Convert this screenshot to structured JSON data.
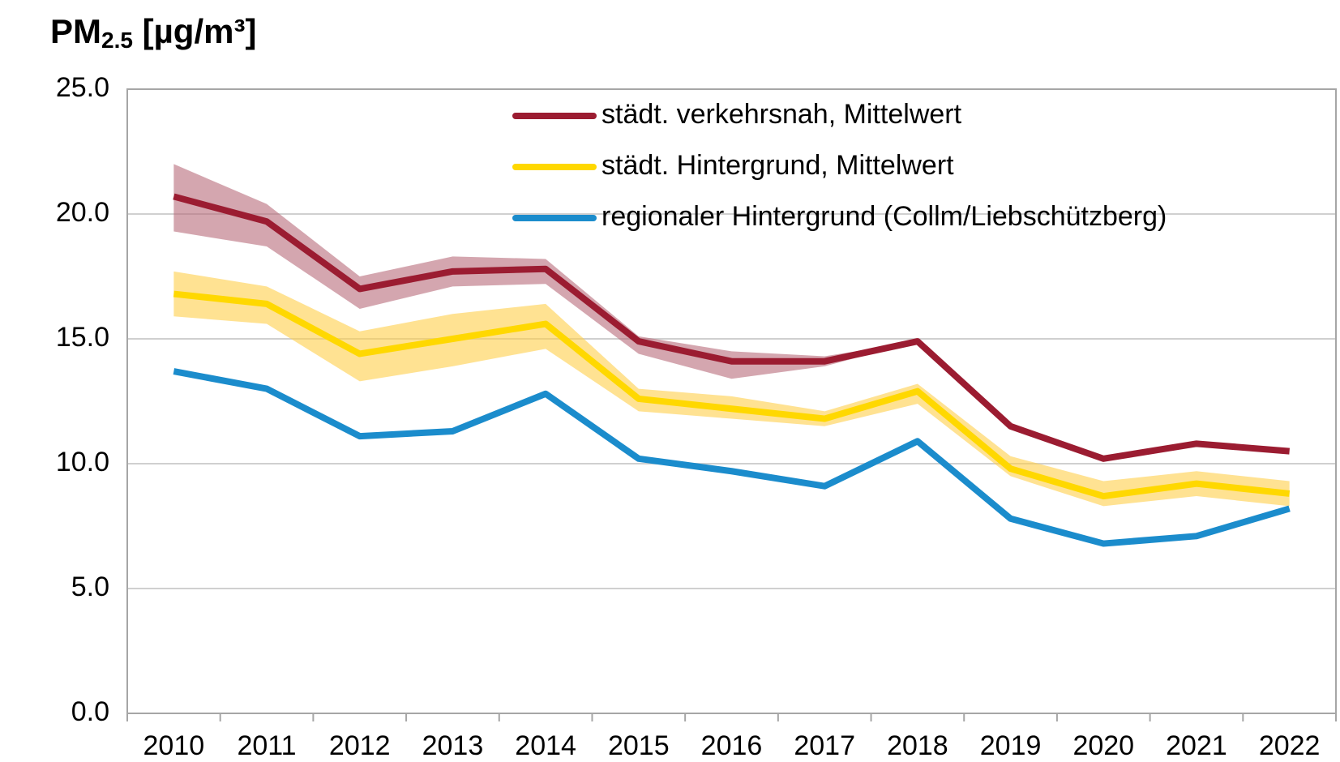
{
  "chart_data": {
    "type": "line",
    "title": {
      "main": "PM",
      "sub": "2.5",
      "unit": " [µg/m³]"
    },
    "categories": [
      "2010",
      "2011",
      "2012",
      "2013",
      "2014",
      "2015",
      "2016",
      "2017",
      "2018",
      "2019",
      "2020",
      "2021",
      "2022"
    ],
    "series": [
      {
        "name": "städt. verkehrsnah, Mittelwert",
        "color": "#9b1c31",
        "band_color": "#b86a79",
        "values": [
          20.7,
          19.7,
          17.0,
          17.7,
          17.8,
          14.9,
          14.1,
          14.1,
          14.9,
          11.5,
          10.2,
          10.8,
          10.5
        ],
        "range_lower": [
          19.3,
          18.7,
          16.2,
          17.1,
          17.2,
          14.4,
          13.4,
          13.9,
          14.9,
          11.5,
          10.2,
          10.8,
          10.5
        ],
        "range_upper": [
          22.0,
          20.4,
          17.5,
          18.3,
          18.2,
          15.1,
          14.5,
          14.3,
          14.9,
          11.5,
          10.2,
          10.8,
          10.5
        ]
      },
      {
        "name": "städt. Hintergrund, Mittelwert",
        "color": "#ffd800",
        "band_color": "#ffcf4a",
        "values": [
          16.8,
          16.4,
          14.4,
          15.0,
          15.6,
          12.6,
          12.2,
          11.8,
          12.9,
          9.8,
          8.7,
          9.2,
          8.8
        ],
        "range_lower": [
          15.9,
          15.6,
          13.3,
          13.9,
          14.6,
          12.1,
          11.8,
          11.5,
          12.4,
          9.5,
          8.3,
          8.7,
          8.3
        ],
        "range_upper": [
          17.7,
          17.1,
          15.3,
          16.0,
          16.4,
          13.0,
          12.7,
          12.1,
          13.2,
          10.3,
          9.3,
          9.7,
          9.3
        ]
      },
      {
        "name": "regionaler Hintergrund (Collm/Liebschützberg)",
        "color": "#1b8ccc",
        "values": [
          13.7,
          13.0,
          11.1,
          11.3,
          12.8,
          10.2,
          9.7,
          9.1,
          10.9,
          7.8,
          6.8,
          7.1,
          8.2
        ]
      }
    ],
    "ylim": [
      0,
      25
    ],
    "yticks": [
      {
        "value": 0,
        "label": "0.0"
      },
      {
        "value": 5,
        "label": "5.0"
      },
      {
        "value": 10,
        "label": "10.0"
      },
      {
        "value": 15,
        "label": "15.0"
      },
      {
        "value": 20,
        "label": "20.0"
      },
      {
        "value": 25,
        "label": "25.0"
      }
    ],
    "grid": true,
    "legend": "top right"
  }
}
